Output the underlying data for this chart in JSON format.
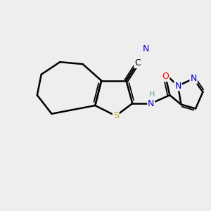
{
  "bg_color": "#eeeeee",
  "atom_colors": {
    "C": "#000000",
    "N": "#0000cc",
    "S": "#bbaa00",
    "O": "#ff0000",
    "H": "#6a9a9a"
  },
  "bond_color": "#000000",
  "bond_width": 1.8,
  "figsize": [
    3.0,
    3.0
  ],
  "dpi": 100
}
